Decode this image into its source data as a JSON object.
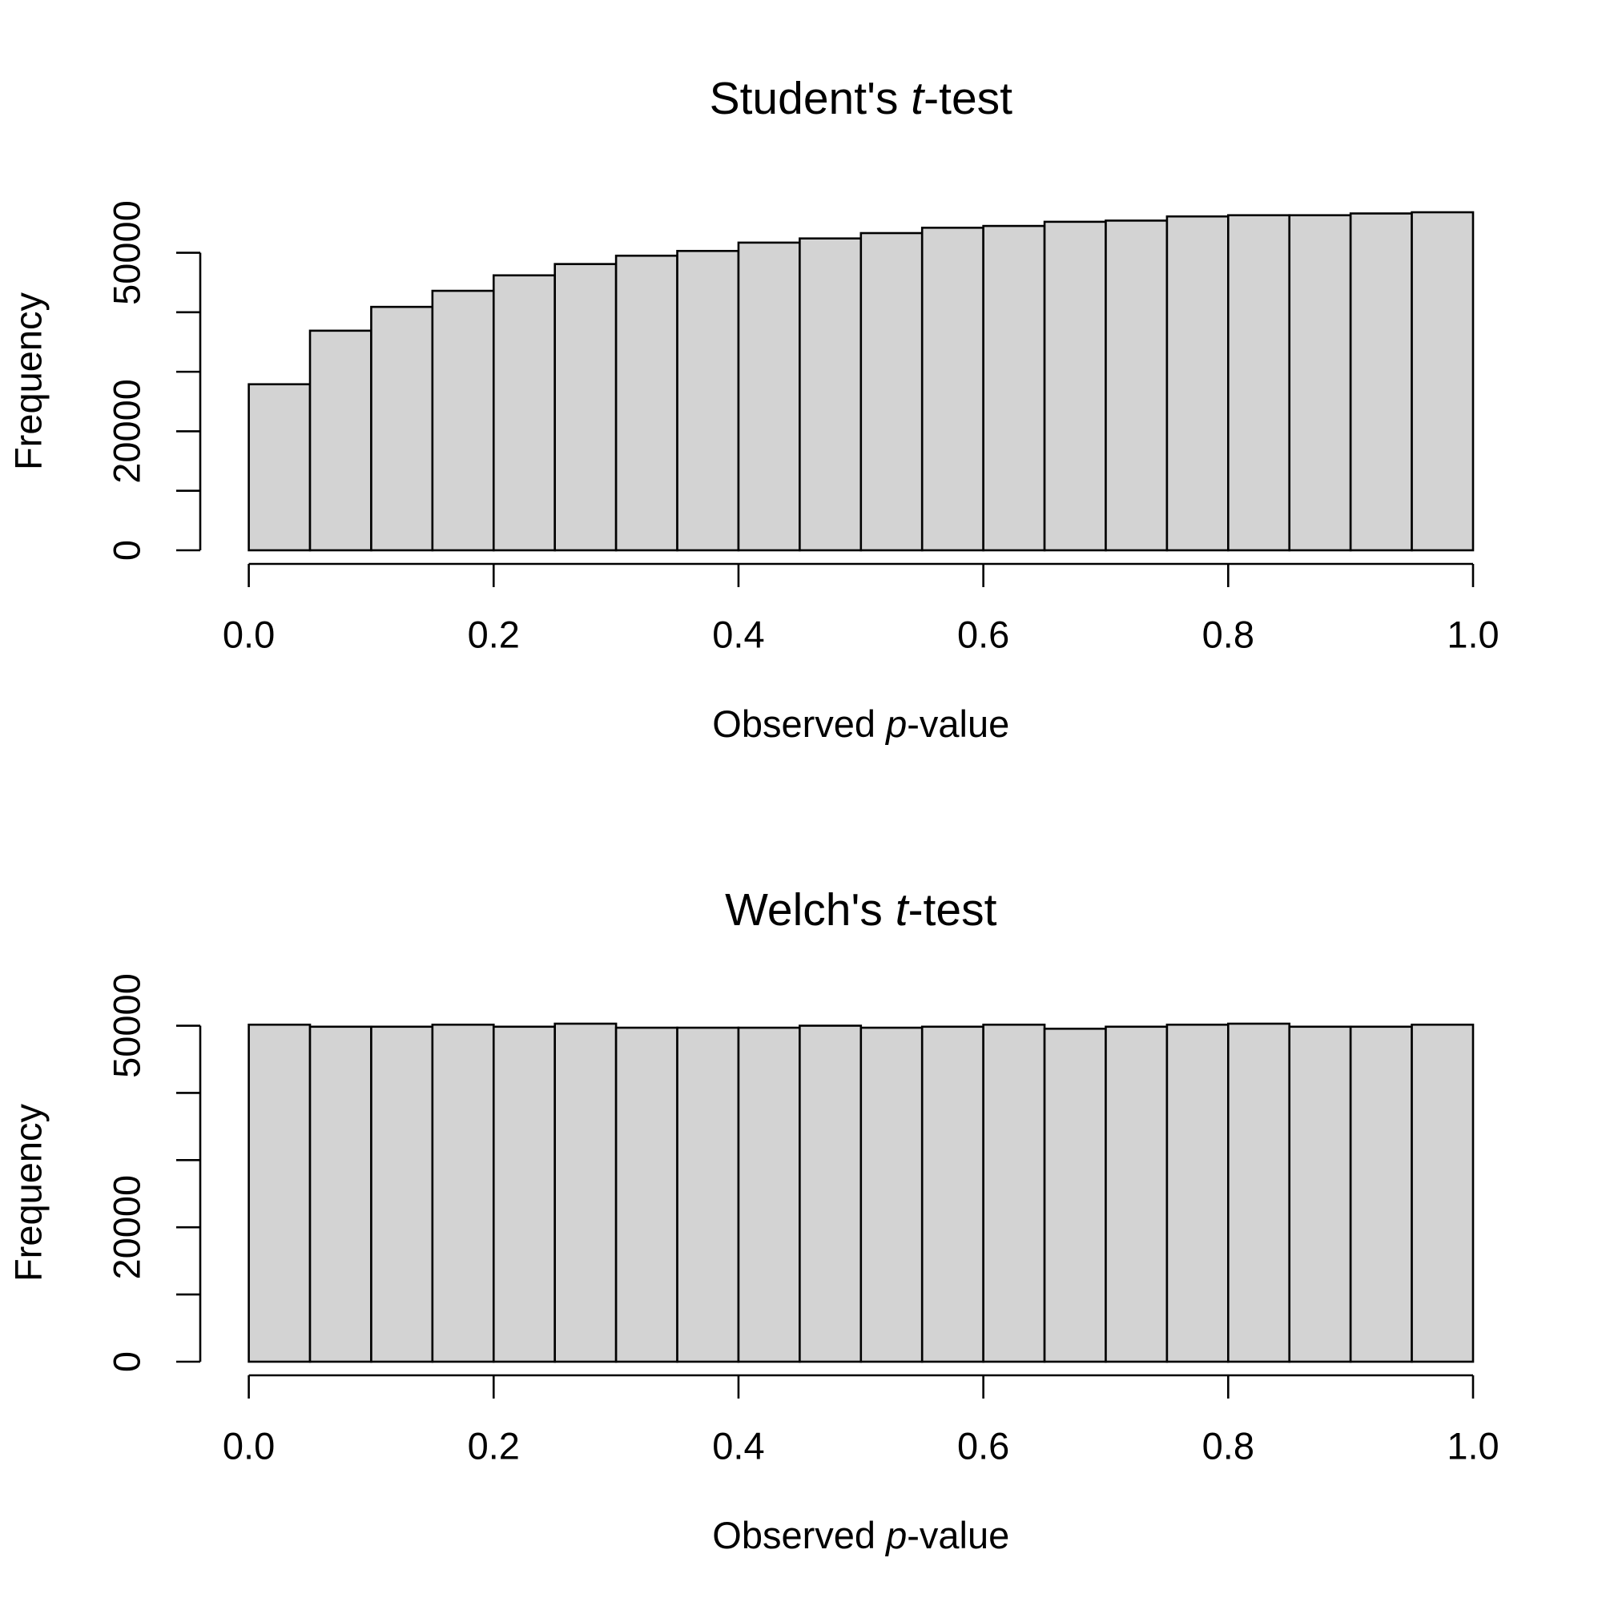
{
  "chart_data": [
    {
      "type": "histogram",
      "title": [
        "Student's ",
        "t",
        "-test"
      ],
      "xlabel": [
        "Observed ",
        "p",
        "-value"
      ],
      "ylabel": "Frequency",
      "bins": [
        0,
        0.05,
        0.1,
        0.15,
        0.2,
        0.25,
        0.3,
        0.35,
        0.4,
        0.45,
        0.5,
        0.55,
        0.6,
        0.65,
        0.7,
        0.75,
        0.8,
        0.85,
        0.9,
        0.95,
        1
      ],
      "values": [
        27900,
        36900,
        40900,
        43600,
        46200,
        48100,
        49500,
        50300,
        51700,
        52400,
        53300,
        54200,
        54500,
        55200,
        55400,
        56100,
        56300,
        56300,
        56600,
        56800
      ],
      "color": "#d3d3d3",
      "xlim": [
        0,
        1
      ],
      "xticks": [
        {
          "value": 0,
          "label": "0.0"
        },
        0.2,
        0.4,
        0.6,
        0.8,
        {
          "value": 1,
          "label": "1.0"
        }
      ],
      "ylim": [
        0,
        56800
      ],
      "yticks": [
        0,
        {
          "value": 10000,
          "label": null
        },
        20000,
        {
          "value": 30000,
          "label": null
        },
        {
          "value": 40000,
          "label": null
        },
        50000
      ]
    },
    {
      "type": "histogram",
      "title": [
        "Welch's ",
        "t",
        "-test"
      ],
      "xlabel": [
        "Observed ",
        "p",
        "-value"
      ],
      "ylabel": "Frequency",
      "bins": [
        0,
        0.05,
        0.1,
        0.15,
        0.2,
        0.25,
        0.3,
        0.35,
        0.4,
        0.45,
        0.5,
        0.55,
        0.6,
        0.65,
        0.7,
        0.75,
        0.8,
        0.85,
        0.9,
        0.95,
        1
      ],
      "values": [
        50150,
        49850,
        49850,
        50150,
        49850,
        50300,
        49700,
        49700,
        49700,
        50000,
        49700,
        49850,
        50150,
        49550,
        49850,
        50150,
        50300,
        49850,
        49850,
        50150
      ],
      "color": "#d3d3d3",
      "xlim": [
        0,
        1
      ],
      "xticks": [
        {
          "value": 0,
          "label": "0.0"
        },
        0.2,
        0.4,
        0.6,
        0.8,
        {
          "value": 1,
          "label": "1.0"
        }
      ],
      "ylim": [
        0,
        50300
      ],
      "yticks": [
        0,
        {
          "value": 10000,
          "label": null
        },
        20000,
        {
          "value": 30000,
          "label": null
        },
        {
          "value": 40000,
          "label": null
        },
        50000
      ]
    }
  ]
}
